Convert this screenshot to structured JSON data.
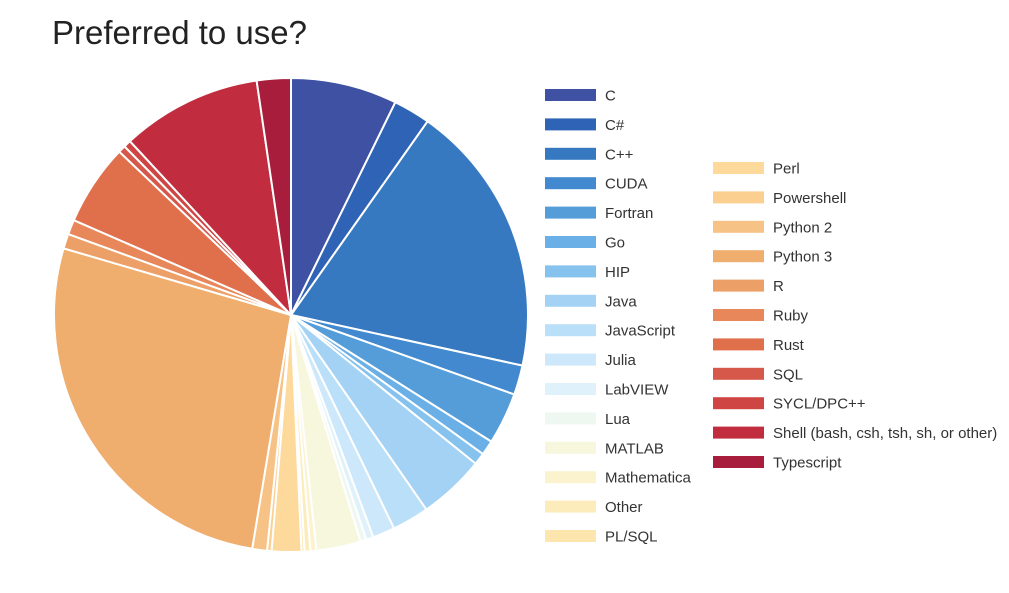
{
  "chart_data": {
    "type": "pie",
    "title": "Preferred to use?",
    "slices": [
      {
        "label": "C",
        "value": 7.2,
        "color": "#3f51a3"
      },
      {
        "label": "C#",
        "value": 2.5,
        "color": "#2f63b5"
      },
      {
        "label": "C++",
        "value": 18.5,
        "color": "#3779c1"
      },
      {
        "label": "CUDA",
        "value": 2.0,
        "color": "#4289cf"
      },
      {
        "label": "Fortran",
        "value": 3.5,
        "color": "#549dd9"
      },
      {
        "label": "Go",
        "value": 1.0,
        "color": "#6aafe6"
      },
      {
        "label": "HIP",
        "value": 0.8,
        "color": "#86c2ee"
      },
      {
        "label": "Java",
        "value": 4.5,
        "color": "#a3d2f5"
      },
      {
        "label": "JavaScript",
        "value": 2.5,
        "color": "#badff8"
      },
      {
        "label": "Julia",
        "value": 1.5,
        "color": "#cde8fa"
      },
      {
        "label": "LabVIEW",
        "value": 0.5,
        "color": "#dff2fb"
      },
      {
        "label": "Lua",
        "value": 0.4,
        "color": "#eef8f1"
      },
      {
        "label": "MATLAB",
        "value": 3.0,
        "color": "#f7f7de"
      },
      {
        "label": "Mathematica",
        "value": 0.4,
        "color": "#fbf3cd"
      },
      {
        "label": "Other",
        "value": 0.4,
        "color": "#fdecbb"
      },
      {
        "label": "PL/SQL",
        "value": 0.2,
        "color": "#fde6ae"
      },
      {
        "label": "Perl",
        "value": 2.0,
        "color": "#fdd99b"
      },
      {
        "label": "Powershell",
        "value": 0.3,
        "color": "#fbcf8f"
      },
      {
        "label": "Python 2",
        "value": 1.0,
        "color": "#f6c286"
      },
      {
        "label": "Python 3",
        "value": 26.7,
        "color": "#efad6e"
      },
      {
        "label": "R",
        "value": 1.0,
        "color": "#ec9f66"
      },
      {
        "label": "Ruby",
        "value": 1.0,
        "color": "#e8885a"
      },
      {
        "label": "Rust",
        "value": 5.5,
        "color": "#e06f4c"
      },
      {
        "label": "SQL",
        "value": 0.5,
        "color": "#d6584a"
      },
      {
        "label": "SYCL/DPC++",
        "value": 0.5,
        "color": "#cf4543"
      },
      {
        "label": "Shell (bash, csh, tsh, sh, or other)",
        "value": 9.5,
        "color": "#c12d3f"
      },
      {
        "label": "Typescript",
        "value": 2.3,
        "color": "#a81d3b"
      }
    ]
  }
}
